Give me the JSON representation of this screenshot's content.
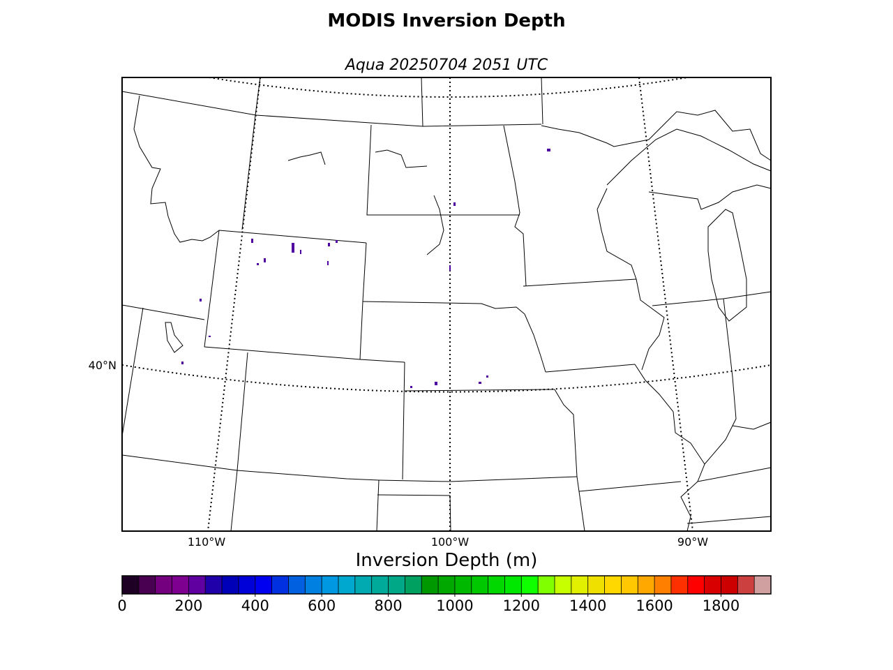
{
  "title": "MODIS Inversion Depth",
  "subtitle": "Aqua 20250704 2051 UTC",
  "map": {
    "lon_labels": [
      "110°W",
      "100°W",
      "90°W"
    ],
    "lat_labels": [
      "40°N"
    ]
  },
  "colorbar": {
    "label": "Inversion Depth (m)",
    "range": [
      0,
      1950
    ],
    "ticks": [
      0,
      200,
      400,
      600,
      800,
      1000,
      1200,
      1400,
      1600,
      1800
    ],
    "colors": [
      "#1f0025",
      "#4a0050",
      "#740080",
      "#7e0090",
      "#6000a0",
      "#2000a8",
      "#0000b8",
      "#0000d8",
      "#0000f0",
      "#0030e0",
      "#0060e0",
      "#0080e0",
      "#0098e0",
      "#00a8d0",
      "#00aab0",
      "#00aa9a",
      "#00a888",
      "#00a060",
      "#009800",
      "#00a800",
      "#00b800",
      "#00c800",
      "#00d800",
      "#00e800",
      "#10ff00",
      "#80ff00",
      "#c8ff00",
      "#e0f000",
      "#f0e000",
      "#ffd800",
      "#ffc800",
      "#ffa800",
      "#ff8000",
      "#ff3000",
      "#ff0000",
      "#d80000",
      "#cc0000",
      "#cc4040",
      "#d0a0a0"
    ]
  }
}
